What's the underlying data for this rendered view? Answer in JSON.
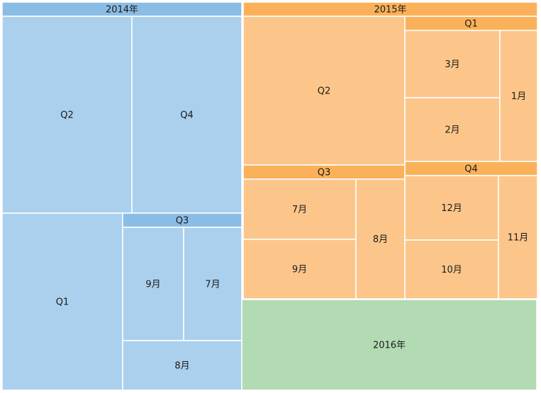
{
  "chart_data": {
    "type": "treemap",
    "title": "",
    "nodes": [
      {
        "name": "2014年",
        "color": "#8ABDE6",
        "fill": "#ABD0EE",
        "children": [
          {
            "name": "Q2"
          },
          {
            "name": "Q4"
          },
          {
            "name": "Q1"
          },
          {
            "name": "Q3",
            "children": [
              {
                "name": "9月"
              },
              {
                "name": "7月"
              },
              {
                "name": "8月"
              }
            ]
          }
        ]
      },
      {
        "name": "2015年",
        "color": "#FBB15A",
        "fill": "#FCC68A",
        "children": [
          {
            "name": "Q2"
          },
          {
            "name": "Q1",
            "children": [
              {
                "name": "3月"
              },
              {
                "name": "2月"
              },
              {
                "name": "1月"
              }
            ]
          },
          {
            "name": "Q3",
            "children": [
              {
                "name": "7月"
              },
              {
                "name": "9月"
              },
              {
                "name": "8月"
              }
            ]
          },
          {
            "name": "Q4",
            "children": [
              {
                "name": "12月"
              },
              {
                "name": "10月"
              },
              {
                "name": "11月"
              }
            ]
          }
        ]
      },
      {
        "name": "2016年",
        "color": "#B2DBB3",
        "fill": "#B2DBB3"
      }
    ]
  }
}
